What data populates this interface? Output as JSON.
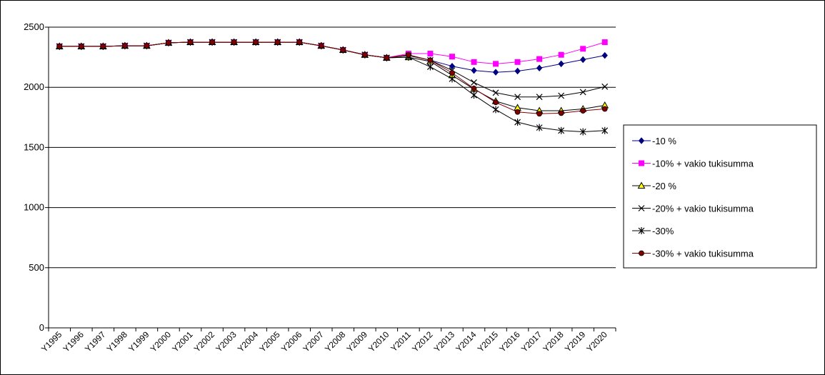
{
  "chart_data": {
    "type": "line",
    "title": "",
    "xlabel": "",
    "ylabel": "",
    "ylim": [
      0,
      2500
    ],
    "yticks": [
      0,
      500,
      1000,
      1500,
      2000,
      2500
    ],
    "grid": "horizontal",
    "legend_position": "right",
    "categories": [
      "Y1995",
      "Y1996",
      "Y1997",
      "Y1998",
      "Y1999",
      "Y2000",
      "Y2001",
      "Y2002",
      "Y2003",
      "Y2004",
      "Y2005",
      "Y2006",
      "Y2007",
      "Y2008",
      "Y2009",
      "Y2010",
      "Y2011",
      "Y2012",
      "Y2013",
      "Y2014",
      "Y2015",
      "Y2016",
      "Y2017",
      "Y2018",
      "Y2019",
      "Y2020"
    ],
    "series": [
      {
        "name": "-10 %",
        "color": "#000080",
        "marker": "diamond",
        "values": [
          2340,
          2340,
          2340,
          2345,
          2345,
          2370,
          2375,
          2375,
          2375,
          2375,
          2375,
          2375,
          2345,
          2310,
          2270,
          2245,
          2265,
          2225,
          2175,
          2140,
          2125,
          2135,
          2160,
          2195,
          2230,
          2265
        ]
      },
      {
        "name": "-10% + vakio tukisumma",
        "color": "#ff00ff",
        "marker": "square",
        "values": [
          2340,
          2340,
          2340,
          2345,
          2345,
          2370,
          2375,
          2375,
          2375,
          2375,
          2375,
          2375,
          2345,
          2310,
          2270,
          2245,
          2280,
          2280,
          2255,
          2210,
          2195,
          2210,
          2235,
          2270,
          2320,
          2375
        ]
      },
      {
        "name": "-20 %",
        "color": "#ffff00",
        "marker": "triangle",
        "values": [
          2340,
          2340,
          2340,
          2345,
          2345,
          2370,
          2375,
          2375,
          2375,
          2375,
          2375,
          2375,
          2345,
          2310,
          2270,
          2245,
          2250,
          2215,
          2100,
          1985,
          1885,
          1830,
          1805,
          1805,
          1820,
          1850
        ]
      },
      {
        "name": "-20% + vakio tukisumma",
        "color": "#000000",
        "marker": "x",
        "values": [
          2340,
          2340,
          2340,
          2345,
          2345,
          2370,
          2375,
          2375,
          2375,
          2375,
          2375,
          2375,
          2345,
          2310,
          2270,
          2245,
          2265,
          2225,
          2140,
          2040,
          1955,
          1920,
          1920,
          1930,
          1960,
          2005
        ]
      },
      {
        "name": "-30%",
        "color": "#000000",
        "marker": "star",
        "values": [
          2340,
          2340,
          2340,
          2345,
          2345,
          2370,
          2375,
          2375,
          2375,
          2375,
          2375,
          2375,
          2345,
          2310,
          2270,
          2245,
          2250,
          2170,
          2070,
          1935,
          1815,
          1710,
          1665,
          1640,
          1630,
          1640
        ]
      },
      {
        "name": "-30% + vakio tukisumma",
        "color": "#800000",
        "marker": "circle",
        "values": [
          2340,
          2340,
          2340,
          2345,
          2345,
          2370,
          2375,
          2375,
          2375,
          2375,
          2375,
          2375,
          2345,
          2310,
          2270,
          2245,
          2270,
          2225,
          2120,
          1990,
          1875,
          1795,
          1780,
          1785,
          1805,
          1820
        ]
      }
    ]
  }
}
